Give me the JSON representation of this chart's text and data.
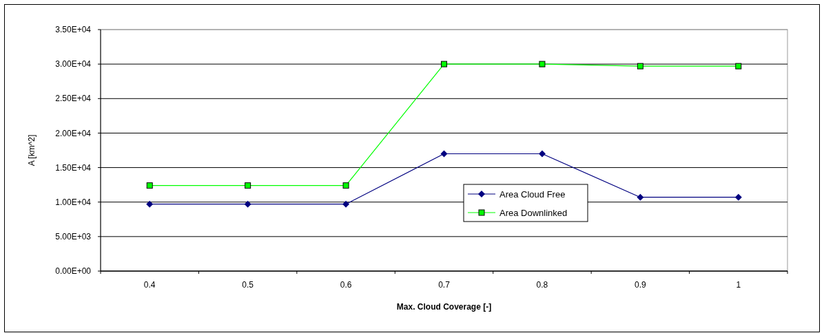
{
  "chart_data": {
    "type": "line",
    "xlabel": "Max. Cloud Coverage [-]",
    "ylabel": "A [km^2]",
    "categories": [
      "0.4",
      "0.5",
      "0.6",
      "0.7",
      "0.8",
      "0.9",
      "1"
    ],
    "series": [
      {
        "name": "Area Cloud Free",
        "color": "#000080",
        "marker": "diamond",
        "values": [
          9700,
          9700,
          9700,
          17000,
          17000,
          10700,
          10700
        ]
      },
      {
        "name": "Area Downlinked",
        "color": "#00ff00",
        "marker": "square",
        "values": [
          12400,
          12400,
          12400,
          30000,
          30000,
          29700,
          29700
        ]
      }
    ],
    "ylim": [
      0,
      35000
    ],
    "yticks": [
      {
        "value": 0,
        "label": "0.00E+00"
      },
      {
        "value": 5000,
        "label": "5.00E+03"
      },
      {
        "value": 10000,
        "label": "1.00E+04"
      },
      {
        "value": 15000,
        "label": "1.50E+04"
      },
      {
        "value": 20000,
        "label": "2.00E+04"
      },
      {
        "value": 25000,
        "label": "2.50E+04"
      },
      {
        "value": 30000,
        "label": "3.00E+04"
      },
      {
        "value": 35000,
        "label": "3.50E+04"
      }
    ],
    "grid": "y",
    "legend": "center"
  }
}
